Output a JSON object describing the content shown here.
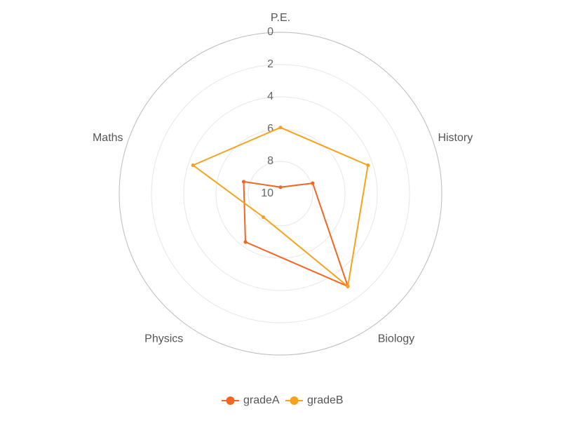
{
  "chart_data": {
    "type": "radar",
    "indicators": [
      "P.E.",
      "History",
      "Biology",
      "Physics",
      "Maths"
    ],
    "radial_ticks": [
      "0",
      "2",
      "4",
      "6",
      "8",
      "10"
    ],
    "radial_range": [
      0,
      10
    ],
    "radial_inverted": true,
    "grid": true,
    "legend_position": "bottom",
    "series": [
      {
        "name": "gradeA",
        "color": "#f26522",
        "values": [
          9.6,
          7.9,
          2.9,
          6.3,
          7.6
        ]
      },
      {
        "name": "gradeB",
        "color": "#f7a21b",
        "values": [
          5.9,
          4.3,
          2.9,
          8.2,
          4.3
        ]
      }
    ]
  }
}
